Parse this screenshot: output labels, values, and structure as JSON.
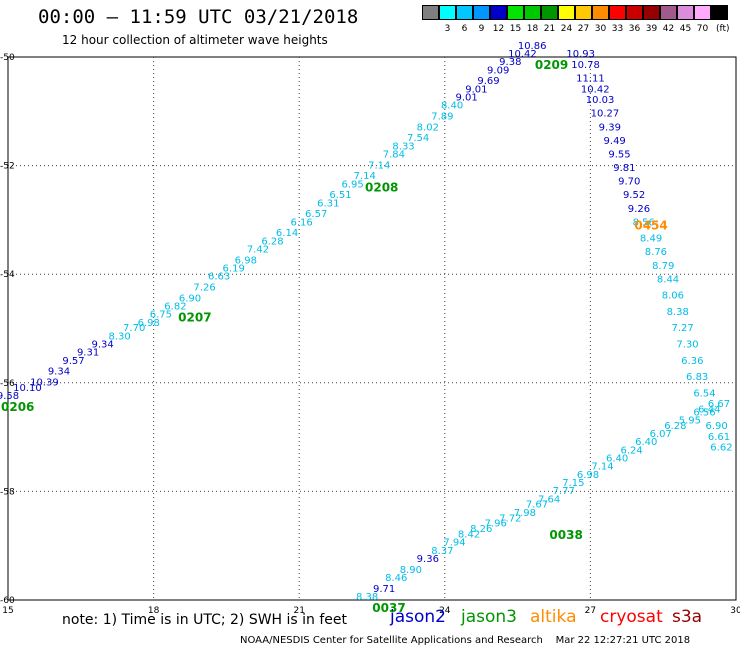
{
  "header": {
    "title": "00:00 – 11:59 UTC 03/21/2018",
    "subtitle": "12 hour collection of altimeter wave heights"
  },
  "colorbar": {
    "unit": "(ft)",
    "entries": [
      {
        "value": "",
        "color": "#7f7f7f"
      },
      {
        "value": "3",
        "color": "#00ffff"
      },
      {
        "value": "6",
        "color": "#00c8ff"
      },
      {
        "value": "9",
        "color": "#0096ff"
      },
      {
        "value": "12",
        "color": "#0000c8"
      },
      {
        "value": "15",
        "color": "#00e600"
      },
      {
        "value": "18",
        "color": "#00c800"
      },
      {
        "value": "21",
        "color": "#009600"
      },
      {
        "value": "24",
        "color": "#ffff00"
      },
      {
        "value": "27",
        "color": "#ffc800"
      },
      {
        "value": "30",
        "color": "#ff8c00"
      },
      {
        "value": "33",
        "color": "#ff0000"
      },
      {
        "value": "36",
        "color": "#c80000"
      },
      {
        "value": "39",
        "color": "#960000"
      },
      {
        "value": "42",
        "color": "#a05a8c"
      },
      {
        "value": "45",
        "color": "#dc8cdc"
      },
      {
        "value": "70",
        "color": "#ffaaff"
      },
      {
        "value": "",
        "color": "#000000"
      }
    ]
  },
  "map": {
    "lon_range": [
      15,
      30
    ],
    "lat_range": [
      -60,
      -50
    ],
    "x_ticks": [
      "15",
      "18",
      "21",
      "24",
      "27",
      "30"
    ],
    "y_ticks": [
      "-50",
      "-52",
      "-54",
      "-56",
      "-58",
      "-60"
    ],
    "grid": "dotted",
    "colors": {
      "light": "#00bde6",
      "dark": "#0000c8",
      "time": "#009600",
      "altika": "#ff8c00"
    },
    "tracks": [
      {
        "points": [
          [
            15.0,
            -56.3,
            "9.58",
            "dark"
          ],
          [
            15.4,
            -56.15,
            "10.10",
            "dark"
          ],
          [
            15.75,
            -56.05,
            "10.39",
            "dark"
          ],
          [
            16.05,
            -55.85,
            "9.34",
            "dark"
          ],
          [
            16.35,
            -55.65,
            "9.57",
            "dark"
          ],
          [
            16.65,
            -55.5,
            "9.31",
            "dark"
          ],
          [
            16.95,
            -55.35,
            "9.34",
            "dark"
          ],
          [
            17.3,
            -55.2,
            "8.30",
            "light"
          ],
          [
            17.6,
            -55.05,
            "7.70",
            "light"
          ],
          [
            17.9,
            -54.95,
            "6.98",
            "light"
          ],
          [
            18.15,
            -54.8,
            "6.75",
            "light"
          ],
          [
            18.45,
            -54.65,
            "6.82",
            "light"
          ],
          [
            18.75,
            -54.5,
            "6.90",
            "light"
          ],
          [
            19.05,
            -54.3,
            "7.26",
            "light"
          ],
          [
            19.35,
            -54.1,
            "6.63",
            "light"
          ],
          [
            19.65,
            -53.95,
            "6.19",
            "light"
          ],
          [
            19.9,
            -53.8,
            "6.98",
            "light"
          ],
          [
            20.15,
            -53.6,
            "7.42",
            "light"
          ],
          [
            20.45,
            -53.45,
            "6.28",
            "light"
          ],
          [
            20.75,
            -53.3,
            "6.14",
            "light"
          ],
          [
            21.05,
            -53.1,
            "6.16",
            "light"
          ],
          [
            21.35,
            -52.95,
            "6.57",
            "light"
          ],
          [
            21.6,
            -52.75,
            "6.31",
            "light"
          ],
          [
            21.85,
            -52.6,
            "6.51",
            "light"
          ],
          [
            22.1,
            -52.4,
            "6.95",
            "light"
          ],
          [
            22.35,
            -52.25,
            "7.14",
            "light"
          ],
          [
            22.65,
            -52.05,
            "7.14",
            "light"
          ],
          [
            22.95,
            -51.85,
            "7.84",
            "light"
          ],
          [
            23.15,
            -51.7,
            "8.33",
            "light"
          ],
          [
            23.45,
            -51.55,
            "7.54",
            "light"
          ],
          [
            23.65,
            -51.35,
            "8.02",
            "light"
          ],
          [
            23.95,
            -51.15,
            "7.89",
            "light"
          ],
          [
            24.15,
            -50.95,
            "8.40",
            "light"
          ],
          [
            24.45,
            -50.8,
            "9.01",
            "dark"
          ],
          [
            24.65,
            -50.65,
            "9.01",
            "dark"
          ],
          [
            24.9,
            -50.5,
            "9.69",
            "dark"
          ],
          [
            25.1,
            -50.3,
            "9.09",
            "dark"
          ],
          [
            25.35,
            -50.15,
            "9.38",
            "dark"
          ],
          [
            25.6,
            -50.0,
            "10.42",
            "dark"
          ],
          [
            25.8,
            -49.85,
            "10.86",
            "dark"
          ]
        ]
      },
      {
        "points": [
          [
            26.8,
            -50.0,
            "10.93",
            "dark"
          ],
          [
            26.9,
            -50.2,
            "10.78",
            "dark"
          ],
          [
            27.0,
            -50.45,
            "11.11",
            "dark"
          ],
          [
            27.1,
            -50.65,
            "10.42",
            "dark"
          ],
          [
            27.2,
            -50.85,
            "10.03",
            "dark"
          ],
          [
            27.3,
            -51.1,
            "10.27",
            "dark"
          ],
          [
            27.4,
            -51.35,
            "9.39",
            "dark"
          ],
          [
            27.5,
            -51.6,
            "9.49",
            "dark"
          ],
          [
            27.6,
            -51.85,
            "9.55",
            "dark"
          ],
          [
            27.7,
            -52.1,
            "9.81",
            "dark"
          ],
          [
            27.8,
            -52.35,
            "9.70",
            "dark"
          ],
          [
            27.9,
            -52.6,
            "9.52",
            "dark"
          ],
          [
            28.0,
            -52.85,
            "9.26",
            "dark"
          ],
          [
            28.1,
            -53.1,
            "8.56",
            "light"
          ],
          [
            28.25,
            -53.4,
            "8.49",
            "light"
          ],
          [
            28.35,
            -53.65,
            "8.76",
            "light"
          ],
          [
            28.5,
            -53.9,
            "8.79",
            "light"
          ],
          [
            28.6,
            -54.15,
            "8.44",
            "light"
          ],
          [
            28.7,
            -54.45,
            "8.06",
            "light"
          ],
          [
            28.8,
            -54.75,
            "8.38",
            "light"
          ],
          [
            28.9,
            -55.05,
            "7.27",
            "light"
          ],
          [
            29.0,
            -55.35,
            "7.30",
            "light"
          ],
          [
            29.1,
            -55.65,
            "6.36",
            "light"
          ],
          [
            29.2,
            -55.95,
            "6.83",
            "light"
          ],
          [
            29.35,
            -56.25,
            "6.54",
            "light"
          ],
          [
            29.45,
            -56.55,
            "6.44",
            "light"
          ],
          [
            29.6,
            -56.85,
            "6.90",
            "light"
          ],
          [
            29.65,
            -57.05,
            "6.61",
            "light"
          ],
          [
            29.7,
            -57.25,
            "6.62",
            "light"
          ]
        ]
      },
      {
        "points": [
          [
            22.4,
            -60.0,
            "8.38",
            "light"
          ],
          [
            22.75,
            -59.85,
            "9.71",
            "dark"
          ],
          [
            23.0,
            -59.65,
            "8.46",
            "light"
          ],
          [
            23.3,
            -59.5,
            "8.90",
            "light"
          ],
          [
            23.65,
            -59.3,
            "9.36",
            "dark"
          ],
          [
            23.95,
            -59.15,
            "8.37",
            "light"
          ],
          [
            24.2,
            -59.0,
            "7.94",
            "light"
          ],
          [
            24.5,
            -58.85,
            "8.42",
            "light"
          ],
          [
            24.75,
            -58.75,
            "8.26",
            "light"
          ],
          [
            25.05,
            -58.65,
            "7.96",
            "light"
          ],
          [
            25.35,
            -58.55,
            "7.72",
            "light"
          ],
          [
            25.65,
            -58.45,
            "7.98",
            "light"
          ],
          [
            25.9,
            -58.3,
            "7.67",
            "light"
          ],
          [
            26.15,
            -58.2,
            "7.64",
            "light"
          ],
          [
            26.45,
            -58.05,
            "7.77",
            "light"
          ],
          [
            26.65,
            -57.9,
            "7.15",
            "light"
          ],
          [
            26.95,
            -57.75,
            "6.98",
            "light"
          ],
          [
            27.25,
            -57.6,
            "7.14",
            "light"
          ],
          [
            27.55,
            -57.45,
            "6.40",
            "light"
          ],
          [
            27.85,
            -57.3,
            "6.24",
            "light"
          ],
          [
            28.15,
            -57.15,
            "6.40",
            "light"
          ],
          [
            28.45,
            -57.0,
            "6.07",
            "light"
          ],
          [
            28.75,
            -56.85,
            "6.28",
            "light"
          ],
          [
            29.05,
            -56.75,
            "5.95",
            "light"
          ],
          [
            29.35,
            -56.6,
            "6.56",
            "light"
          ],
          [
            29.65,
            -56.45,
            "6.67",
            "light"
          ]
        ]
      }
    ],
    "time_labels": [
      {
        "text": "0206",
        "lon": 15.2,
        "lat": -56.45,
        "color": "time"
      },
      {
        "text": "0207",
        "lon": 18.85,
        "lat": -54.8,
        "color": "time"
      },
      {
        "text": "0208",
        "lon": 22.7,
        "lat": -52.4,
        "color": "time"
      },
      {
        "text": "0209",
        "lon": 26.2,
        "lat": -50.15,
        "color": "time"
      },
      {
        "text": "0454",
        "lon": 28.25,
        "lat": -53.1,
        "color": "altika"
      },
      {
        "text": "0038",
        "lon": 26.5,
        "lat": -58.8,
        "color": "time"
      },
      {
        "text": "0037",
        "lon": 22.85,
        "lat": -60.15,
        "color": "time"
      }
    ]
  },
  "footer": {
    "note": "note: 1) Time is in UTC; 2) SWH is in feet",
    "satellites": [
      {
        "name": "jason2",
        "color": "#0000c8"
      },
      {
        "name": "jason3",
        "color": "#009600"
      },
      {
        "name": "altika",
        "color": "#ff8c00"
      },
      {
        "name": "cryosat",
        "color": "#ff0000"
      },
      {
        "name": "s3a",
        "color": "#960000"
      }
    ],
    "credit": "NOAA/NESDIS Center for Satellite Applications and Research    Mar 22 12:27:21 UTC 2018"
  }
}
